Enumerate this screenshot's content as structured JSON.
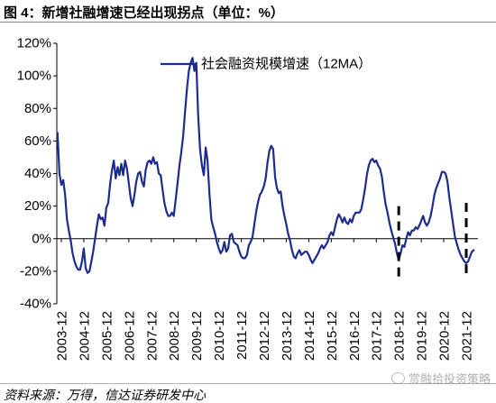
{
  "source": "资料来源：万得，信达证券研发中心",
  "watermark": "赏融拾投资策略",
  "colors": {
    "series": "#1c2b8f",
    "axis": "#000000",
    "reference_line": "#000000"
  },
  "chart_data": {
    "type": "line",
    "title": "图 4：新增社融增速已经出现拐点（单位：%）",
    "ylim": [
      -40,
      120
    ],
    "y_ticks": [
      120,
      100,
      80,
      60,
      40,
      20,
      0,
      -20,
      -40
    ],
    "y_tick_labels": [
      "120%",
      "100%",
      "80%",
      "60%",
      "40%",
      "20%",
      "0%",
      "-20%",
      "-40%"
    ],
    "x_tick_labels": [
      "2003-12",
      "2004-12",
      "2005-12",
      "2006-12",
      "2007-12",
      "2008-12",
      "2009-12",
      "2010-12",
      "2011-12",
      "2012-12",
      "2013-12",
      "2014-12",
      "2015-12",
      "2016-12",
      "2017-12",
      "2018-12",
      "2019-12",
      "2020-12",
      "2021-12"
    ],
    "grid": false,
    "legend": "top",
    "series": [
      {
        "name": "社会融资规模增速（12MA）",
        "x": [
          "2003-10",
          "2003-11",
          "2003-12",
          "2004-01",
          "2004-02",
          "2004-03",
          "2004-04",
          "2004-05",
          "2004-06",
          "2004-07",
          "2004-08",
          "2004-09",
          "2004-10",
          "2004-11",
          "2004-12",
          "2005-01",
          "2005-02",
          "2005-03",
          "2005-04",
          "2005-05",
          "2005-06",
          "2005-07",
          "2005-08",
          "2005-09",
          "2005-10",
          "2005-11",
          "2005-12",
          "2006-01",
          "2006-02",
          "2006-03",
          "2006-04",
          "2006-05",
          "2006-06",
          "2006-07",
          "2006-08",
          "2006-09",
          "2006-10",
          "2006-11",
          "2006-12",
          "2007-01",
          "2007-02",
          "2007-03",
          "2007-04",
          "2007-05",
          "2007-06",
          "2007-07",
          "2007-08",
          "2007-09",
          "2007-10",
          "2007-11",
          "2007-12",
          "2008-01",
          "2008-02",
          "2008-03",
          "2008-04",
          "2008-05",
          "2008-06",
          "2008-07",
          "2008-08",
          "2008-09",
          "2008-10",
          "2008-11",
          "2008-12",
          "2009-01",
          "2009-02",
          "2009-03",
          "2009-04",
          "2009-05",
          "2009-06",
          "2009-07",
          "2009-08",
          "2009-09",
          "2009-10",
          "2009-11",
          "2009-12",
          "2010-01",
          "2010-02",
          "2010-03",
          "2010-04",
          "2010-05",
          "2010-06",
          "2010-07",
          "2010-08",
          "2010-09",
          "2010-10",
          "2010-11",
          "2010-12",
          "2011-01",
          "2011-02",
          "2011-03",
          "2011-04",
          "2011-05",
          "2011-06",
          "2011-07",
          "2011-08",
          "2011-09",
          "2011-10",
          "2011-11",
          "2011-12",
          "2012-01",
          "2012-02",
          "2012-03",
          "2012-04",
          "2012-05",
          "2012-06",
          "2012-07",
          "2012-08",
          "2012-09",
          "2012-10",
          "2012-11",
          "2012-12",
          "2013-01",
          "2013-02",
          "2013-03",
          "2013-04",
          "2013-05",
          "2013-06",
          "2013-07",
          "2013-08",
          "2013-09",
          "2013-10",
          "2013-11",
          "2013-12",
          "2014-01",
          "2014-02",
          "2014-03",
          "2014-04",
          "2014-05",
          "2014-06",
          "2014-07",
          "2014-08",
          "2014-09",
          "2014-10",
          "2014-11",
          "2014-12",
          "2015-01",
          "2015-02",
          "2015-03",
          "2015-04",
          "2015-05",
          "2015-06",
          "2015-07",
          "2015-08",
          "2015-09",
          "2015-10",
          "2015-11",
          "2015-12",
          "2016-01",
          "2016-02",
          "2016-03",
          "2016-04",
          "2016-05",
          "2016-06",
          "2016-07",
          "2016-08",
          "2016-09",
          "2016-10",
          "2016-11",
          "2016-12",
          "2017-01",
          "2017-02",
          "2017-03",
          "2017-04",
          "2017-05",
          "2017-06",
          "2017-07",
          "2017-08",
          "2017-09",
          "2017-10",
          "2017-11",
          "2017-12",
          "2018-01",
          "2018-02",
          "2018-03",
          "2018-04",
          "2018-05",
          "2018-06",
          "2018-07",
          "2018-08",
          "2018-09",
          "2018-10",
          "2018-11",
          "2018-12",
          "2019-01",
          "2019-02",
          "2019-03",
          "2019-04",
          "2019-05",
          "2019-06",
          "2019-07",
          "2019-08",
          "2019-09",
          "2019-10",
          "2019-11",
          "2019-12",
          "2020-01",
          "2020-02",
          "2020-03",
          "2020-04",
          "2020-05",
          "2020-06",
          "2020-07",
          "2020-08",
          "2020-09",
          "2020-10",
          "2020-11",
          "2020-12",
          "2021-01",
          "2021-02",
          "2021-03",
          "2021-04",
          "2021-05",
          "2021-06",
          "2021-07",
          "2021-08",
          "2021-09",
          "2021-10",
          "2021-11",
          "2021-12",
          "2022-01",
          "2022-02",
          "2022-03",
          "2022-04"
        ],
        "values": [
          65,
          40,
          33,
          36,
          27,
          12,
          5,
          -1,
          -9,
          -14,
          -17,
          -19,
          -19,
          -14,
          -6,
          -18,
          -21,
          -20,
          -14,
          -8,
          0,
          8,
          15,
          12,
          13,
          8,
          19,
          22,
          33,
          42,
          48,
          37,
          44,
          39,
          46,
          39,
          48,
          43,
          34,
          25,
          20,
          27,
          35,
          40,
          41,
          35,
          32,
          42,
          47,
          48,
          46,
          50,
          46,
          47,
          40,
          39,
          30,
          22,
          17,
          14,
          14,
          16,
          14,
          24,
          34,
          45,
          53,
          63,
          78,
          92,
          103,
          108,
          111,
          103,
          108,
          76,
          55,
          45,
          39,
          56,
          48,
          28,
          12,
          7,
          3,
          -2,
          -6,
          -9,
          -7,
          -2,
          -8,
          -6,
          2,
          3,
          -2,
          -3,
          -4,
          -8,
          -11,
          -12,
          -12,
          -10,
          -4,
          -2,
          1,
          9,
          17,
          23,
          27,
          29,
          32,
          37,
          47,
          54,
          57,
          55,
          38,
          31,
          28,
          29,
          20,
          14,
          9,
          3,
          -1,
          -7,
          -11,
          -12,
          -9,
          -7,
          -10,
          -9,
          -8,
          -8,
          -10,
          -13,
          -15,
          -13,
          -11,
          -9,
          -6,
          -4,
          -6,
          -4,
          -2,
          2,
          4,
          2,
          7,
          12,
          15,
          13,
          10,
          13,
          10,
          9,
          12,
          10,
          14,
          16,
          16,
          16,
          18,
          24,
          31,
          39,
          45,
          48,
          49,
          47,
          48,
          45,
          43,
          38,
          29,
          21,
          16,
          10,
          5,
          1,
          -3,
          -9,
          -13,
          -9,
          -4,
          -5,
          0,
          4,
          2,
          5,
          5,
          7,
          6,
          8,
          11,
          14,
          10,
          8,
          10,
          14,
          20,
          27,
          31,
          34,
          37,
          41,
          41,
          40,
          35,
          25,
          17,
          9,
          1,
          -3,
          -7,
          -10,
          -12,
          -14,
          -15,
          -14,
          -11,
          -8,
          -7
        ]
      }
    ],
    "reference_lines": [
      {
        "x": "2018-12",
        "y_from": 20,
        "y_to": -25
      },
      {
        "x": "2021-12",
        "y_from": 22,
        "y_to": -22
      }
    ]
  }
}
